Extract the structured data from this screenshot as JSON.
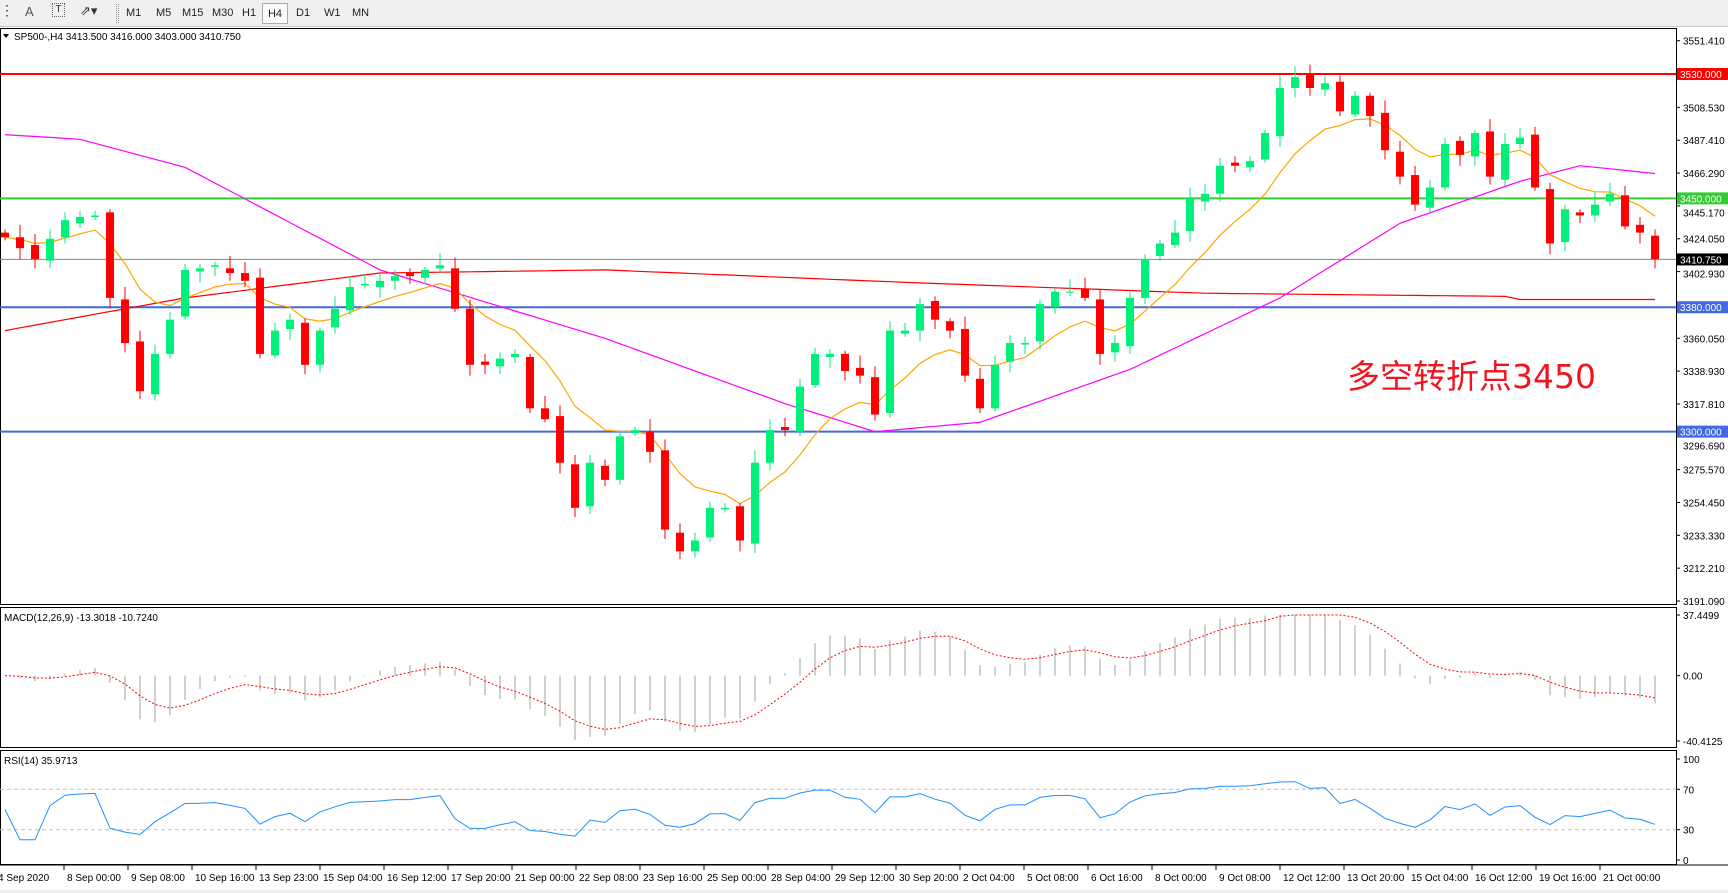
{
  "toolbar": {
    "icons": [
      "grid-icon",
      "text-a-icon",
      "text-label-icon",
      "shapes-dropdown-icon"
    ],
    "text_a": "A",
    "timeframes": [
      "M1",
      "M5",
      "M15",
      "M30",
      "H1",
      "H4",
      "D1",
      "W1",
      "MN"
    ],
    "selected": "H4"
  },
  "main": {
    "title": "SP500-,H4  3413.500 3416.000 3403.000 3410.750",
    "price_ticks": [
      "3551.410",
      "3508.530",
      "3487.410",
      "3466.290",
      "3445.170",
      "3424.050",
      "3402.930",
      "3360.050",
      "3338.930",
      "3317.810",
      "3296.690",
      "3275.570",
      "3254.450",
      "3233.330",
      "3212.210",
      "3191.090"
    ],
    "ylim": [
      3191.09,
      3551.41
    ],
    "levels": [
      {
        "price": 3530,
        "label": "3530.000",
        "color": "#ff0000"
      },
      {
        "price": 3450,
        "label": "3450.000",
        "color": "#32cd32"
      },
      {
        "price": 3380,
        "label": "3380.000",
        "color": "#4169e1"
      },
      {
        "price": 3300,
        "label": "3300.000",
        "color": "#4169e1"
      }
    ],
    "current": {
      "price": 3410.75,
      "label": "3410.750"
    },
    "annotation": "多空转折点3450",
    "colors": {
      "bull": "#00f07a",
      "bear": "#ff0000",
      "ma_fast": "#ffa500",
      "ma_mid": "#ff00ff",
      "ma_slow": "#ff0000"
    }
  },
  "chart_data": {
    "type": "candlestick",
    "closes": [
      3425,
      3418,
      3411,
      3424,
      3436,
      3438,
      3439,
      3386,
      3357,
      3326,
      3350,
      3372,
      3404,
      3405,
      3407,
      3402,
      3397,
      3350,
      3365,
      3372,
      3343,
      3365,
      3379,
      3393,
      3395,
      3397,
      3400,
      3400,
      3404,
      3407,
      3379,
      3343,
      3343,
      3347,
      3350,
      3315,
      3308,
      3280,
      3251,
      3280,
      3269,
      3297,
      3301,
      3287,
      3237,
      3223,
      3230,
      3251,
      3251,
      3230,
      3280,
      3301,
      3301,
      3329,
      3350,
      3350,
      3339,
      3336,
      3311,
      3365,
      3365,
      3382,
      3372,
      3365,
      3336,
      3315,
      3343,
      3357,
      3357,
      3382,
      3390,
      3390,
      3386,
      3350,
      3357,
      3386,
      3411,
      3421,
      3428,
      3450,
      3453,
      3471,
      3471,
      3474,
      3492,
      3521,
      3528,
      3521,
      3524,
      3506,
      3516,
      3503,
      3481,
      3464,
      3446,
      3457,
      3485,
      3478,
      3492,
      3464,
      3485,
      3489,
      3457,
      3421,
      3443,
      3439,
      3446,
      3453,
      3432,
      3428,
      3411
    ],
    "ma_slow_points": [
      [
        0,
        3365
      ],
      [
        12,
        3386
      ],
      [
        25,
        3402
      ],
      [
        40,
        3404
      ],
      [
        60,
        3396
      ],
      [
        80,
        3389
      ],
      [
        100,
        3387
      ],
      [
        101,
        3385
      ]
    ],
    "ma_mid_points": [
      [
        0,
        3491
      ],
      [
        5,
        3488
      ],
      [
        12,
        3470
      ],
      [
        25,
        3404
      ],
      [
        40,
        3360
      ],
      [
        52,
        3318
      ],
      [
        58,
        3300
      ],
      [
        65,
        3306
      ],
      [
        75,
        3340
      ],
      [
        85,
        3386
      ],
      [
        93,
        3434
      ],
      [
        101,
        3461
      ],
      [
        105,
        3471
      ],
      [
        110,
        3466
      ]
    ]
  },
  "macd": {
    "label": "MACD(12,26,9) -13.3018 -10.7240",
    "ticks": [
      "37.4499",
      "0.00",
      "-40.4125"
    ],
    "range": [
      -40.4125,
      37.4499
    ]
  },
  "rsi": {
    "label": "RSI(14) 35.9713",
    "ticks": [
      "100",
      "70",
      "30",
      "0"
    ],
    "color": "#1e90ff"
  },
  "time_axis": [
    "4 Sep 2020",
    "8 Sep 00:00",
    "9 Sep 08:00",
    "10 Sep 16:00",
    "13 Sep 23:00",
    "15 Sep 04:00",
    "16 Sep 12:00",
    "17 Sep 20:00",
    "21 Sep 00:00",
    "22 Sep 08:00",
    "23 Sep 16:00",
    "25 Sep 00:00",
    "28 Sep 04:00",
    "29 Sep 12:00",
    "30 Sep 20:00",
    "2 Oct 04:00",
    "5 Oct 08:00",
    "6 Oct 16:00",
    "8 Oct 00:00",
    "9 Oct 08:00",
    "12 Oct 12:00",
    "13 Oct 20:00",
    "15 Oct 04:00",
    "16 Oct 12:00",
    "19 Oct 16:00",
    "21 Oct 00:00"
  ]
}
